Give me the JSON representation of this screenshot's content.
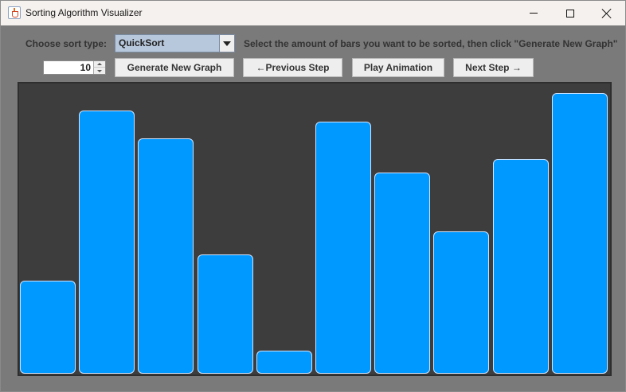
{
  "window": {
    "title": "Sorting Algorithm Visualizer",
    "icon": "java-cup-icon"
  },
  "controls": {
    "sort_label": "Choose sort type:",
    "sort_selected": "QuickSort",
    "hint": "Select the amount of bars you want to be sorted, then click \"Generate New Graph\"",
    "bar_count": "10",
    "generate_label": "Generate New Graph",
    "prev_label": "←Previous Step",
    "play_label": "Play Animation",
    "next_label": "Next Step →"
  },
  "colors": {
    "bar": "#0099ff",
    "canvas": "#3d3d3d",
    "panel": "#7a7a7a"
  },
  "bars": {
    "relative_heights": [
      0.328,
      0.928,
      0.828,
      0.421,
      0.081,
      0.887,
      0.71,
      0.5,
      0.755,
      0.99
    ]
  }
}
